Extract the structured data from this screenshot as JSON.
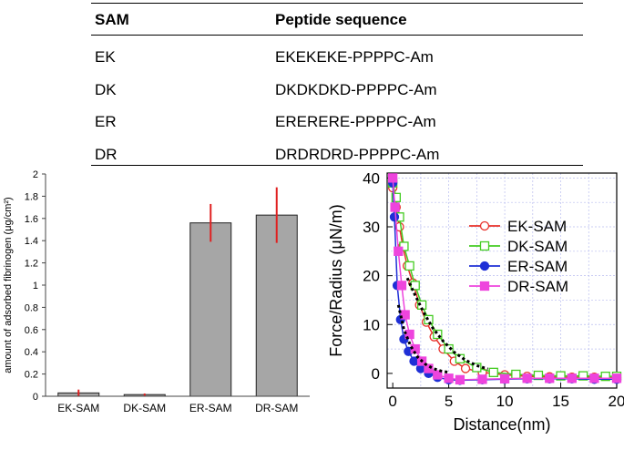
{
  "table": {
    "headers": [
      "SAM",
      "Peptide sequence"
    ],
    "rows": [
      [
        "EK",
        "EKEKEKE-PPPPC-Am"
      ],
      [
        "DK",
        "DKDKDKD-PPPPC-Am"
      ],
      [
        "ER",
        "ERERERE-PPPPC-Am"
      ],
      [
        "DR",
        "DRDRDRD-PPPPC-Am"
      ]
    ]
  },
  "chart_data": [
    {
      "type": "bar",
      "title": "",
      "xlabel": "",
      "ylabel": "amount of adsorbed fibrinogen (μg/cm²)",
      "categories": [
        "EK-SAM",
        "DK-SAM",
        "ER-SAM",
        "DR-SAM"
      ],
      "values": [
        0.03,
        0.015,
        1.56,
        1.63
      ],
      "error": [
        0.03,
        0.01,
        0.17,
        0.25
      ],
      "ylim": [
        0,
        2
      ],
      "yticks": [
        0,
        0.2,
        0.4,
        0.6,
        0.8,
        1,
        1.2,
        1.4,
        1.6,
        1.8,
        2
      ],
      "bar_color": "#a6a6a6",
      "error_color": "#e02020"
    },
    {
      "type": "line",
      "title": "",
      "xlabel": "Distance(nm)",
      "ylabel": "Force/Radius (μN/m)",
      "xlim": [
        -0.5,
        20
      ],
      "ylim": [
        -3,
        41
      ],
      "xticks": [
        0,
        5,
        10,
        15,
        20
      ],
      "yticks": [
        0,
        10,
        20,
        30,
        40
      ],
      "grid": true,
      "legend_position": "right",
      "series": [
        {
          "name": "EK-SAM",
          "color": "#e8302a",
          "marker": "circle-open",
          "x": [
            0,
            0.3,
            0.6,
            0.9,
            1.3,
            1.8,
            2.4,
            3.0,
            3.7,
            4.5,
            5.5,
            6.5,
            8,
            10,
            12,
            14,
            16,
            18,
            20
          ],
          "y": [
            38,
            34,
            30,
            26,
            22,
            18.5,
            14,
            10.5,
            7.5,
            5,
            2.5,
            1,
            0.2,
            -0.3,
            -0.6,
            -0.7,
            -0.8,
            -0.8,
            -0.9
          ]
        },
        {
          "name": "DK-SAM",
          "color": "#44cc22",
          "marker": "square-open",
          "x": [
            0,
            0.3,
            0.6,
            1.0,
            1.5,
            2.0,
            2.6,
            3.2,
            4.0,
            5.0,
            6.0,
            7.5,
            9,
            11,
            13,
            15,
            17,
            19,
            20
          ],
          "y": [
            39,
            36,
            32,
            26,
            22,
            18,
            14,
            11,
            8,
            5,
            3,
            1.2,
            0.2,
            -0.2,
            -0.4,
            -0.5,
            -0.5,
            -0.6,
            -0.6
          ]
        },
        {
          "name": "ER-SAM",
          "color": "#1f2fd6",
          "marker": "circle-filled",
          "x": [
            0,
            0.15,
            0.4,
            0.7,
            1.0,
            1.4,
            1.9,
            2.5,
            3.2,
            4.0,
            5.0,
            6.0,
            8,
            10,
            12,
            14,
            16,
            18,
            20
          ],
          "y": [
            39,
            32,
            18,
            11,
            7,
            4.5,
            2.5,
            1,
            0,
            -0.8,
            -1.3,
            -1.4,
            -1.3,
            -1.2,
            -1.1,
            -1.1,
            -1.1,
            -1.2,
            -1.2
          ]
        },
        {
          "name": "DR-SAM",
          "color": "#ee44dd",
          "marker": "square-filled",
          "x": [
            0,
            0.2,
            0.5,
            0.8,
            1.1,
            1.5,
            2.0,
            2.6,
            3.2,
            4.0,
            5.0,
            6.0,
            8,
            10,
            12,
            14,
            16,
            18,
            20
          ],
          "y": [
            40,
            34,
            25,
            18,
            12,
            8,
            5,
            2.5,
            1,
            -0.3,
            -1,
            -1.3,
            -1.2,
            -1.1,
            -1,
            -1,
            -1,
            -1,
            -1
          ]
        }
      ],
      "fits": [
        {
          "x": [
            1.3,
            2.0,
            2.8,
            3.6,
            4.5,
            5.5,
            6.5,
            7.5,
            8.5
          ],
          "y": [
            19.5,
            16,
            12.3,
            9.2,
            6.6,
            4.3,
            2.7,
            1.6,
            0.9
          ]
        },
        {
          "x": [
            0.5,
            1.0,
            1.6,
            2.2,
            2.9,
            3.6,
            4.3,
            5.0
          ],
          "y": [
            14,
            9,
            5.6,
            3.4,
            1.9,
            1.0,
            0.5,
            0.2
          ]
        }
      ]
    }
  ]
}
